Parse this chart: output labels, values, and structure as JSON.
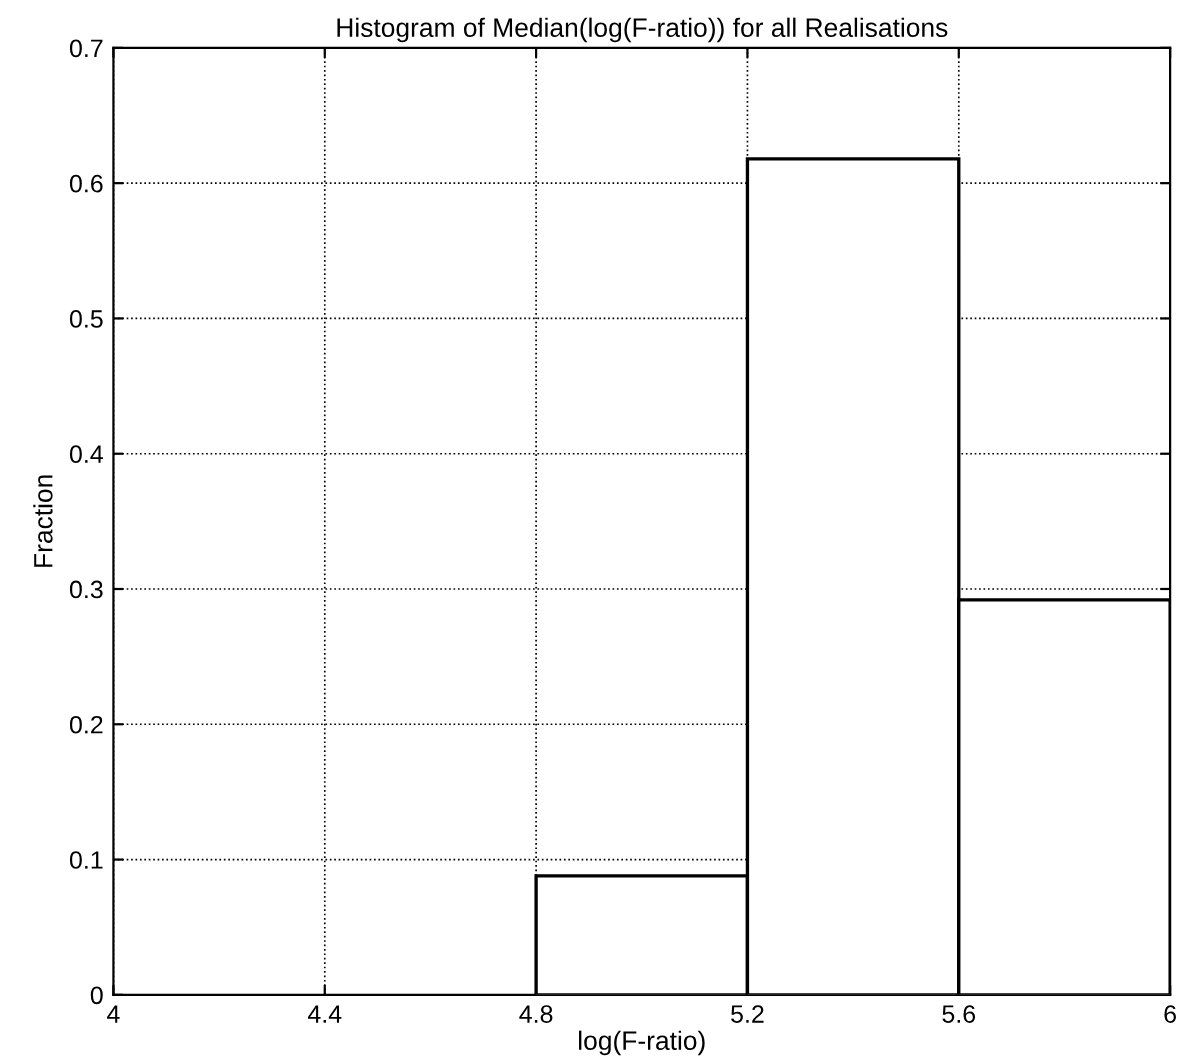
{
  "chart_data": {
    "type": "histogram",
    "title": "Histogram of Median(log(F-ratio)) for all Realisations",
    "xlabel": "log(F-ratio)",
    "ylabel": "Fraction",
    "bins": [
      4,
      4.4,
      4.8,
      5.2,
      5.6,
      6
    ],
    "values": [
      0,
      0,
      0.088,
      0.618,
      0.292
    ],
    "color": "#ffffff",
    "xlim": [
      4,
      6
    ],
    "xticks": [
      4,
      4.4,
      4.8,
      5.2,
      5.6,
      6
    ],
    "ylim": [
      0,
      0.7
    ],
    "yticks": [
      0,
      0.1,
      0.2,
      0.3,
      0.4,
      0.5,
      0.6,
      0.7
    ],
    "grid": true,
    "line_style": "dotted"
  }
}
